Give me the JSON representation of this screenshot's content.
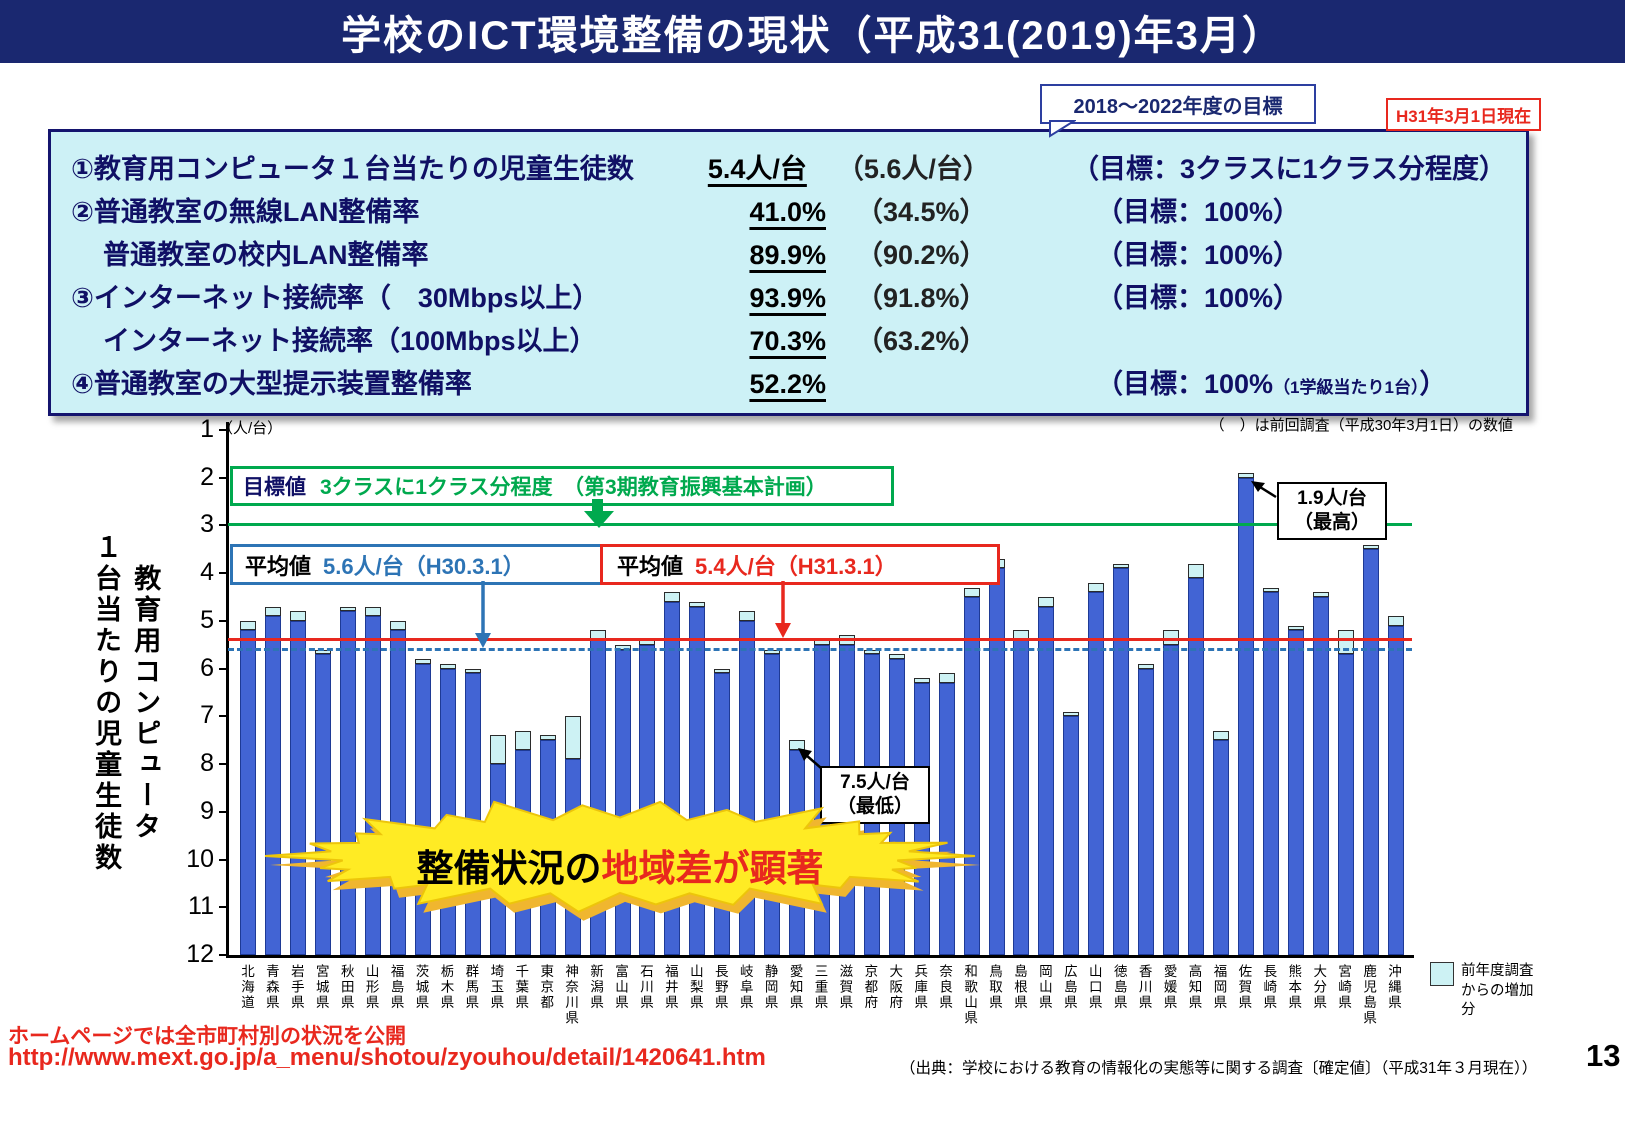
{
  "title": "学校のICT環境整備の現状（平成31(2019)年3月）",
  "header": {
    "goal_period": "2018～2022年度の目標",
    "as_of": "H31年3月1日現在"
  },
  "stats": {
    "rows": [
      {
        "label": "①教育用コンピュータ１台当たりの児童生徒数",
        "value": "5.4人/台",
        "prev": "（5.6人/台）",
        "goal": "（目標：3クラスに1クラス分程度）",
        "goal_small": "",
        "goal_suffix": "",
        "indent": false
      },
      {
        "label": "②普通教室の無線LAN整備率",
        "value": "41.0%",
        "prev": "（34.5%）",
        "goal": "（目標：100%）",
        "goal_small": "",
        "goal_suffix": "",
        "indent": false
      },
      {
        "label": "普通教室の校内LAN整備率",
        "value": "89.9%",
        "prev": "（90.2%）",
        "goal": "（目標：100%）",
        "goal_small": "",
        "goal_suffix": "",
        "indent": true
      },
      {
        "label": "③インターネット接続率（　30Mbps以上）",
        "value": "93.9%",
        "prev": "（91.8%）",
        "goal": "（目標：100%）",
        "goal_small": "",
        "goal_suffix": "",
        "indent": false
      },
      {
        "label": "インターネット接続率（100Mbps以上）",
        "value": "70.3%",
        "prev": "（63.2%）",
        "goal": "",
        "goal_small": "",
        "goal_suffix": "",
        "indent": true
      },
      {
        "label": "④普通教室の大型提示装置整備率",
        "value": "52.2%",
        "prev": "",
        "goal": "（目標：100%",
        "goal_small": "（1学級当たり1台）",
        "goal_suffix": "）",
        "indent": false
      }
    ],
    "footnote": "（　）は前回調査（平成30年3月1日）の数値"
  },
  "chart_data": {
    "type": "bar",
    "unit_label": "（人/台）",
    "ylabel": "教育用コンピュータ１台当たりの児童生徒数",
    "ylabel_lines": [
      "教育用コンピュータ",
      "１台当たりの児童生徒数"
    ],
    "y_axis_inverted": true,
    "ylim": [
      1,
      12
    ],
    "yticks": [
      1,
      2,
      3,
      4,
      5,
      6,
      7,
      8,
      9,
      10,
      11,
      12
    ],
    "categories": [
      "北海道",
      "青森県",
      "岩手県",
      "宮城県",
      "秋田県",
      "山形県",
      "福島県",
      "茨城県",
      "栃木県",
      "群馬県",
      "埼玉県",
      "千葉県",
      "東京都",
      "神奈川県",
      "新潟県",
      "富山県",
      "石川県",
      "福井県",
      "山梨県",
      "長野県",
      "岐阜県",
      "静岡県",
      "愛知県",
      "三重県",
      "滋賀県",
      "京都府",
      "大阪府",
      "兵庫県",
      "奈良県",
      "和歌山県",
      "鳥取県",
      "島根県",
      "岡山県",
      "広島県",
      "山口県",
      "徳島県",
      "香川県",
      "愛媛県",
      "高知県",
      "福岡県",
      "佐賀県",
      "長崎県",
      "熊本県",
      "大分県",
      "宮崎県",
      "鹿児島県",
      "沖縄県"
    ],
    "values_h31": [
      5.0,
      4.7,
      4.8,
      5.6,
      4.7,
      4.7,
      5.0,
      5.8,
      5.9,
      6.0,
      7.4,
      7.3,
      7.4,
      7.0,
      5.2,
      5.5,
      5.4,
      4.4,
      4.6,
      6.0,
      4.8,
      5.6,
      7.5,
      5.4,
      5.3,
      5.6,
      5.7,
      6.2,
      6.1,
      4.3,
      3.7,
      5.2,
      4.5,
      6.9,
      4.2,
      3.8,
      5.9,
      5.2,
      3.8,
      7.3,
      1.9,
      4.3,
      5.1,
      4.4,
      5.2,
      3.4,
      4.9
    ],
    "values_h30": [
      5.2,
      4.9,
      5.0,
      5.7,
      4.8,
      4.9,
      5.2,
      5.9,
      6.0,
      6.1,
      8.0,
      7.7,
      7.5,
      7.9,
      5.4,
      5.6,
      5.5,
      4.6,
      4.7,
      6.1,
      5.0,
      5.7,
      7.7,
      5.5,
      5.5,
      5.7,
      5.8,
      6.3,
      6.3,
      4.5,
      3.9,
      5.4,
      4.7,
      7.0,
      4.4,
      3.9,
      6.0,
      5.5,
      4.1,
      7.5,
      2.0,
      4.4,
      5.2,
      4.5,
      5.7,
      3.5,
      5.1
    ],
    "target_line": {
      "value": 3,
      "color": "#00a94e",
      "label_bold": "目標値",
      "label_text": "3クラスに1クラス分程度　（第3期教育振興基本計画）"
    },
    "average_previous": {
      "value": 5.6,
      "color": "#2d74b5",
      "style": "dashed",
      "label_bold": "平均値",
      "label_text": "5.6人/台（H30.3.1）"
    },
    "average_current": {
      "value": 5.4,
      "color": "#e8281e",
      "style": "solid",
      "label_bold": "平均値",
      "label_text": "5.4人/台（H31.3.1）"
    },
    "callout_max": {
      "line1": "1.9人/台",
      "line2": "（最高）",
      "category": "佐賀県"
    },
    "callout_min": {
      "line1": "7.5人/台",
      "line2": "（最低）",
      "category": "愛知県"
    },
    "burst": {
      "black": "整備状況の",
      "red": "地域差が顕著"
    },
    "legend": {
      "label": "前年度調査からの増加分",
      "swatch_color": "#cdf2f4"
    }
  },
  "colors": {
    "navy": "#1a2870",
    "red": "#e8281e",
    "green": "#00a94e",
    "blue": "#2d74b5",
    "bar_blue": "#4264d4",
    "cap_cyan": "#cdf2f4",
    "panel_bg": "#cdf1f6",
    "burst_yellow": "#ffeb24"
  },
  "footer": {
    "note": "ホームページでは全市町村別の状況を公開",
    "url": "http://www.mext.go.jp/a_menu/shotou/zyouhou/detail/1420641.htm",
    "source": "（出典：学校における教育の情報化の実態等に関する調査〔確定値〕（平成31年３月現在））",
    "page": "13"
  }
}
